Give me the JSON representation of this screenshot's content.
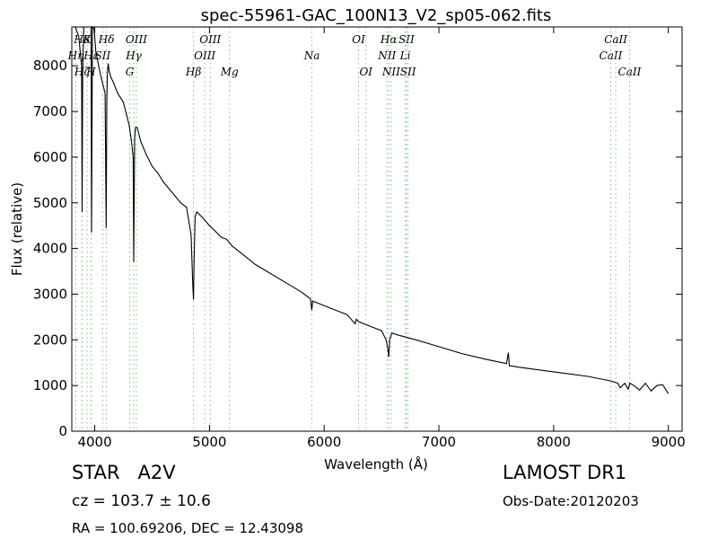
{
  "header": {
    "object_type": "STAR",
    "subclass": "A2V",
    "cz_text": "cz = 103.7 ± 10.6",
    "radec_text": "RA = 100.69206, DEC = 12.43098",
    "survey": "LAMOST DR1",
    "obs_date": "Obs-Date:20120203"
  },
  "chart_data": {
    "type": "line",
    "title": "spec-55961-GAC_100N13_V2_sp05-062.fits",
    "xlabel": "Wavelength (Å)",
    "ylabel": "Flux (relative)",
    "xlim": [
      3800,
      9120
    ],
    "ylim": [
      0,
      8850
    ],
    "x_ticks": [
      4000,
      5000,
      6000,
      7000,
      8000,
      9000
    ],
    "y_ticks": [
      0,
      1000,
      2000,
      3000,
      4000,
      5000,
      6000,
      7000,
      8000
    ],
    "grid": false,
    "series": [
      {
        "line_color": "#000000",
        "x": [
          3830,
          3860,
          3885,
          3890,
          3895,
          3905,
          3925,
          3930,
          3955,
          3968,
          3972,
          3980,
          3995,
          4010,
          4050,
          4090,
          4100,
          4105,
          4110,
          4118,
          4125,
          4140,
          4160,
          4200,
          4250,
          4300,
          4320,
          4335,
          4340,
          4343,
          4348,
          4355,
          4370,
          4400,
          4450,
          4500,
          4550,
          4600,
          4650,
          4700,
          4750,
          4800,
          4820,
          4840,
          4855,
          4861,
          4866,
          4875,
          4890,
          4950,
          5000,
          5050,
          5100,
          5150,
          5200,
          5300,
          5400,
          5500,
          5600,
          5700,
          5800,
          5880,
          5892,
          5900,
          6000,
          6200,
          6270,
          6280,
          6300,
          6400,
          6500,
          6540,
          6555,
          6563,
          6570,
          6590,
          6650,
          6800,
          7000,
          7200,
          7400,
          7550,
          7590,
          7605,
          7615,
          7630,
          7700,
          8000,
          8300,
          8500,
          8560,
          8580,
          8620,
          8650,
          8665,
          8700,
          8750,
          8800,
          8850,
          8900,
          8950,
          9000
        ],
        "values": [
          8850,
          8650,
          8000,
          4800,
          7800,
          8850,
          8850,
          8850,
          8850,
          8850,
          4350,
          8850,
          8800,
          8300,
          7800,
          7400,
          4450,
          7200,
          7800,
          8050,
          7900,
          7750,
          7650,
          7400,
          7200,
          6700,
          6350,
          6000,
          3700,
          4800,
          6400,
          6650,
          6650,
          6350,
          6050,
          5800,
          5650,
          5450,
          5300,
          5150,
          5000,
          4900,
          4600,
          4300,
          3200,
          2880,
          3800,
          4700,
          4800,
          4650,
          4500,
          4380,
          4250,
          4200,
          4050,
          3850,
          3650,
          3500,
          3350,
          3200,
          3050,
          2900,
          2650,
          2850,
          2750,
          2550,
          2350,
          2450,
          2400,
          2300,
          2200,
          2000,
          1800,
          1620,
          2000,
          2150,
          2100,
          2000,
          1850,
          1700,
          1580,
          1500,
          1480,
          1720,
          1430,
          1430,
          1400,
          1300,
          1200,
          1100,
          1050,
          950,
          1050,
          920,
          1050,
          1000,
          900,
          1050,
          880,
          1000,
          1020,
          820
        ]
      }
    ],
    "lines": [
      {
        "label": "Hε",
        "x": 3970,
        "row": 1
      },
      {
        "label": "Hδ",
        "x": 4102,
        "row": 0
      },
      {
        "label": "Hγ",
        "x": 4340,
        "row": 1
      },
      {
        "label": "OIII",
        "x": 4363,
        "row": 0
      },
      {
        "label": "G",
        "x": 4305,
        "row": 2
      },
      {
        "label": "Hβ",
        "x": 4861,
        "row": 2
      },
      {
        "label": "OIII",
        "x": 4959,
        "row": 1
      },
      {
        "label": "OIII",
        "x": 5007,
        "row": 0
      },
      {
        "label": "Mg",
        "x": 5175,
        "row": 2
      },
      {
        "label": "Na",
        "x": 5893,
        "row": 1
      },
      {
        "label": "OI",
        "x": 6300,
        "row": 0
      },
      {
        "label": "OI",
        "x": 6364,
        "row": 2
      },
      {
        "label": "NII",
        "x": 6548,
        "row": 1
      },
      {
        "label": "Hα",
        "x": 6563,
        "row": 0
      },
      {
        "label": "NII",
        "x": 6584,
        "row": 2
      },
      {
        "label": "Li",
        "x": 6707,
        "row": 1
      },
      {
        "label": "SII",
        "x": 6717,
        "row": 0
      },
      {
        "label": "SII",
        "x": 6731,
        "row": 2
      },
      {
        "label": "CaII",
        "x": 8498,
        "row": 1
      },
      {
        "label": "CaII",
        "x": 8542,
        "row": 0
      },
      {
        "label": "CaII",
        "x": 8662,
        "row": 2
      }
    ],
    "lines_crowded": [
      {
        "label": "H8",
        "x": 3889,
        "row": 0
      },
      {
        "label": "Hη",
        "x": 3835,
        "row": 1
      },
      {
        "label": "Hζ",
        "x": 3889,
        "row": 2
      },
      {
        "label": "K",
        "x": 3934,
        "row": 0
      },
      {
        "label": "H",
        "x": 3968,
        "row": 2
      },
      {
        "label": "SII",
        "x": 4069,
        "row": 1
      }
    ],
    "line_color": "#7fc47f"
  }
}
